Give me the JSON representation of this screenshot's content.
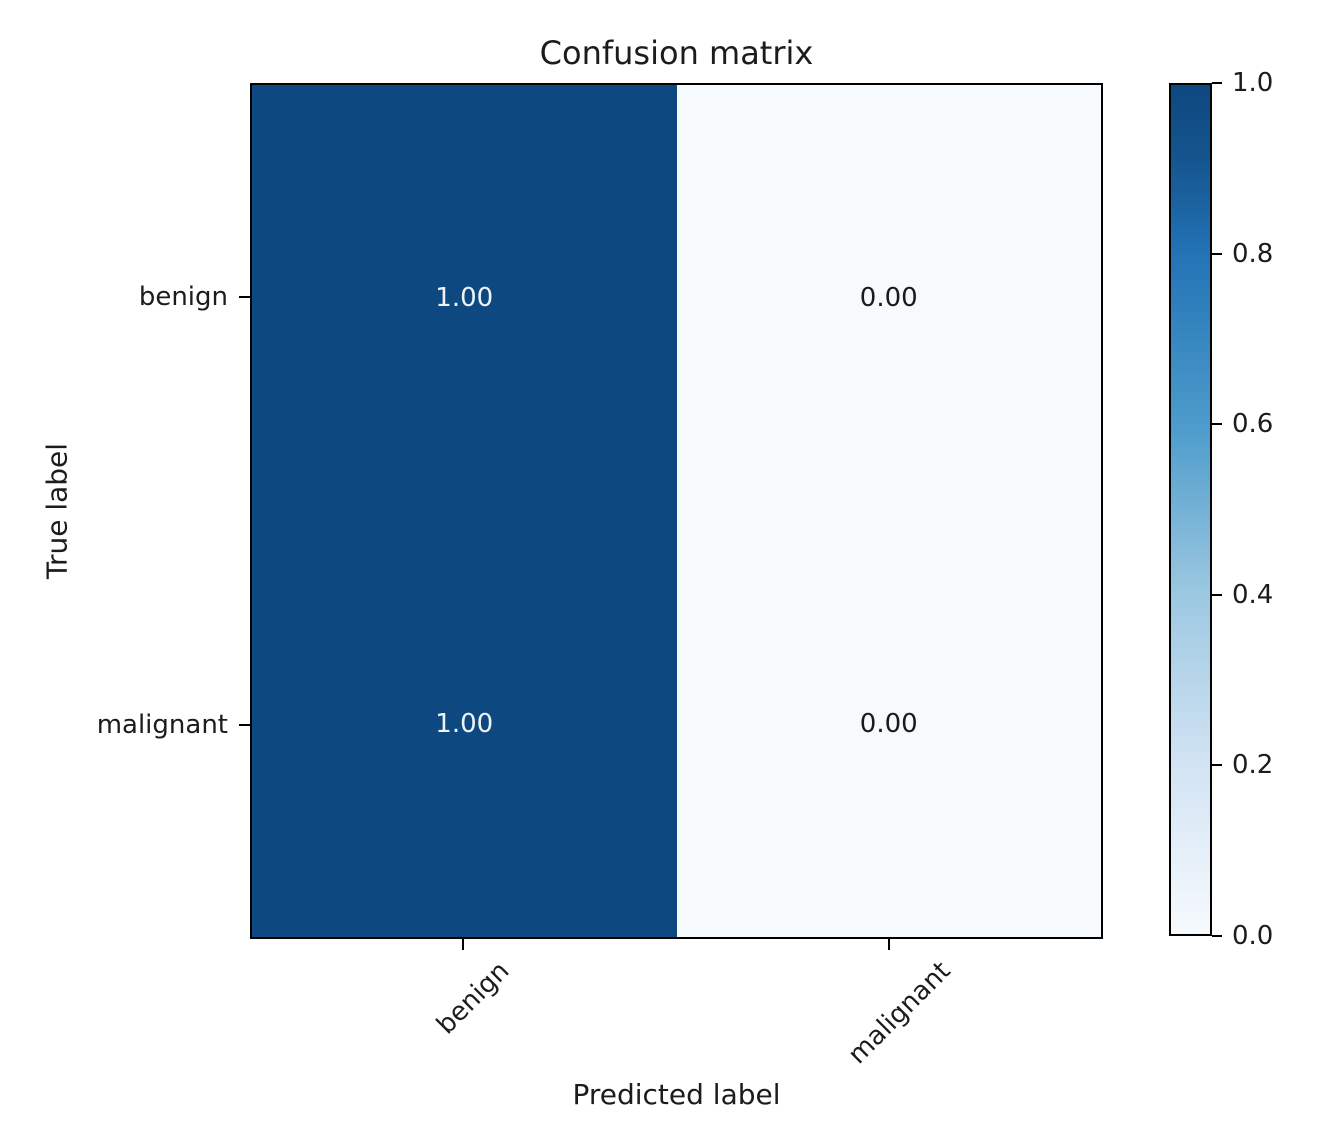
{
  "chart_data": {
    "type": "heatmap",
    "title": "Confusion matrix",
    "xlabel": "Predicted label",
    "ylabel": "True label",
    "x_categories": [
      "benign",
      "malignant"
    ],
    "y_categories": [
      "benign",
      "malignant"
    ],
    "rows": [
      {
        "true_label": "benign",
        "values": [
          1.0,
          0.0
        ],
        "labels": [
          "1.00",
          "0.00"
        ]
      },
      {
        "true_label": "malignant",
        "values": [
          1.0,
          0.0
        ],
        "labels": [
          "1.00",
          "0.00"
        ]
      }
    ],
    "value_range": [
      0,
      1
    ],
    "colormap": "Blues",
    "grid": false,
    "colorbar": {
      "tick_labels": [
        "1.0",
        "0.8",
        "0.6",
        "0.4",
        "0.2",
        "0.0"
      ],
      "gradient_stops_top_to_bottom": [
        {
          "p": 0,
          "c": "#0e4880"
        },
        {
          "p": 8,
          "c": "#14538c"
        },
        {
          "p": 20,
          "c": "#2373b6"
        },
        {
          "p": 40,
          "c": "#4c9bcb"
        },
        {
          "p": 60,
          "c": "#9cc8e1"
        },
        {
          "p": 80,
          "c": "#d2e3f3"
        },
        {
          "p": 100,
          "c": "#f6fafd"
        }
      ]
    },
    "colors": {
      "cell_high": "#0e4880",
      "cell_low": "#f6fafd",
      "cell_text_on_dark": "#eef3f8",
      "cell_text_on_light": "#1a1a1a",
      "background": "#ffffff",
      "axis_text": "#1c1c1c"
    }
  }
}
